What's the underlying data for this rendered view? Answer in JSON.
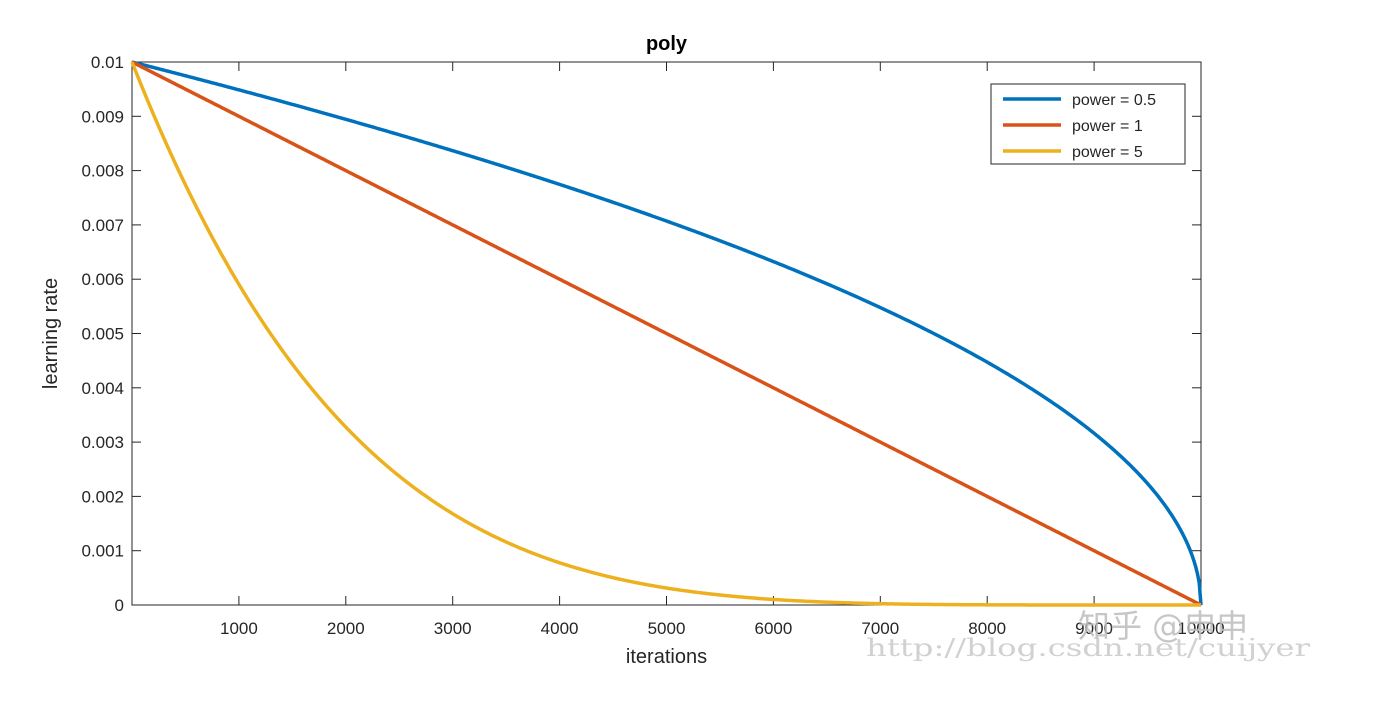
{
  "chart_data": {
    "type": "line",
    "title": "poly",
    "xlabel": "iterations",
    "ylabel": "learning rate",
    "xlim": [
      0,
      10000
    ],
    "ylim": [
      0,
      0.01
    ],
    "xticks": [
      "1000",
      "2000",
      "3000",
      "4000",
      "5000",
      "6000",
      "7000",
      "8000",
      "9000",
      "10000"
    ],
    "yticks": [
      "0",
      "0.001",
      "0.002",
      "0.003",
      "0.004",
      "0.005",
      "0.006",
      "0.007",
      "0.008",
      "0.009",
      "0.01"
    ],
    "grid": false,
    "legend_position": "top-right",
    "base_lr": 0.01,
    "max_iter": 10000,
    "series": [
      {
        "name": "power = 0.5",
        "power": 0.5,
        "color": "#0072BD"
      },
      {
        "name": "power = 1",
        "power": 1,
        "color": "#D95319"
      },
      {
        "name": "power = 5",
        "power": 5,
        "color": "#EDB120"
      }
    ]
  },
  "watermark": {
    "zhihu": "知乎 @申申",
    "blog": "http://blog.csdn.net/cuijyer"
  }
}
